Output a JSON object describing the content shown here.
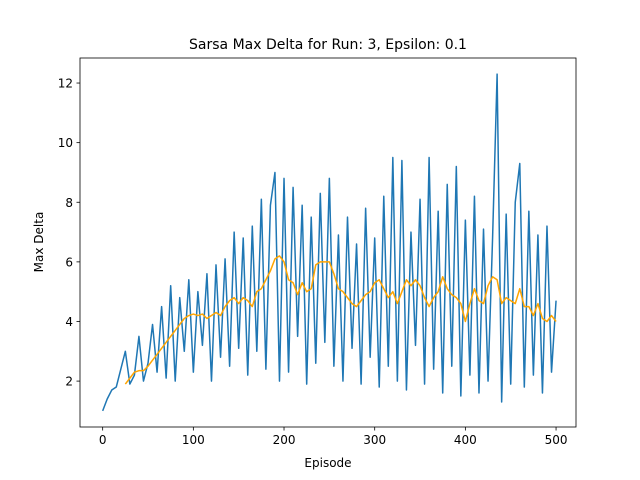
{
  "chart_data": {
    "type": "line",
    "title": "Sarsa Max Delta for Run: 3, Epsilon: 0.1",
    "x_label": "Episode",
    "y_label": "Max Delta",
    "x": [
      0,
      5,
      10,
      15,
      20,
      25,
      30,
      35,
      40,
      45,
      50,
      55,
      60,
      65,
      70,
      75,
      80,
      85,
      90,
      95,
      100,
      105,
      110,
      115,
      120,
      125,
      130,
      135,
      140,
      145,
      150,
      155,
      160,
      165,
      170,
      175,
      180,
      185,
      190,
      195,
      200,
      205,
      210,
      215,
      220,
      225,
      230,
      235,
      240,
      245,
      250,
      255,
      260,
      265,
      270,
      275,
      280,
      285,
      290,
      295,
      300,
      305,
      310,
      315,
      320,
      325,
      330,
      335,
      340,
      345,
      350,
      355,
      360,
      365,
      370,
      375,
      380,
      385,
      390,
      395,
      400,
      405,
      410,
      415,
      420,
      425,
      430,
      435,
      440,
      445,
      450,
      455,
      460,
      465,
      470,
      475,
      480,
      485,
      490,
      495,
      500
    ],
    "series": [
      {
        "color": "#1f77b4",
        "values": [
          1.0,
          1.4,
          1.7,
          1.8,
          2.4,
          3.0,
          1.9,
          2.2,
          3.5,
          2.0,
          2.6,
          3.9,
          2.3,
          4.5,
          2.1,
          5.2,
          2.0,
          4.8,
          3.0,
          5.4,
          2.3,
          5.0,
          3.2,
          5.6,
          2.0,
          5.9,
          2.8,
          6.1,
          2.5,
          7.0,
          3.1,
          6.8,
          2.2,
          7.2,
          3.0,
          8.1,
          2.4,
          7.9,
          9.0,
          2.0,
          8.8,
          2.3,
          8.5,
          3.5,
          7.9,
          1.9,
          7.5,
          2.6,
          8.3,
          3.3,
          8.8,
          2.5,
          6.9,
          2.0,
          7.5,
          3.1,
          6.6,
          1.9,
          7.8,
          2.8,
          6.8,
          1.8,
          8.2,
          2.5,
          9.5,
          2.0,
          9.4,
          1.7,
          7.0,
          3.2,
          8.1,
          1.9,
          9.5,
          2.4,
          7.7,
          1.6,
          8.6,
          2.5,
          9.2,
          1.5,
          7.4,
          2.2,
          8.2,
          1.6,
          7.1,
          2.0,
          6.8,
          12.3,
          1.3,
          7.6,
          1.9,
          8.0,
          9.3,
          1.8,
          7.7,
          2.2,
          6.9,
          1.6,
          7.2,
          2.3,
          4.7
        ]
      },
      {
        "color": "#ffa500",
        "values": [
          null,
          null,
          null,
          null,
          null,
          1.9,
          2.1,
          2.3,
          2.35,
          2.35,
          2.5,
          2.7,
          2.9,
          3.1,
          3.3,
          3.5,
          3.7,
          3.9,
          4.1,
          4.2,
          4.25,
          4.2,
          4.25,
          4.1,
          4.2,
          4.3,
          4.2,
          4.5,
          4.7,
          4.8,
          4.6,
          4.8,
          4.7,
          4.5,
          5.0,
          5.1,
          5.4,
          5.7,
          6.1,
          6.2,
          6.0,
          5.4,
          5.3,
          4.9,
          5.3,
          5.0,
          5.1,
          5.9,
          6.0,
          6.0,
          6.0,
          5.6,
          5.1,
          5.0,
          4.8,
          4.6,
          4.5,
          4.7,
          4.9,
          5.0,
          5.3,
          5.4,
          5.1,
          4.8,
          5.0,
          4.6,
          5.0,
          5.4,
          5.2,
          5.4,
          5.2,
          4.8,
          4.5,
          4.8,
          5.0,
          5.5,
          5.1,
          4.9,
          4.8,
          4.6,
          4.0,
          4.6,
          5.1,
          4.7,
          4.6,
          5.2,
          5.5,
          5.4,
          4.6,
          4.8,
          4.7,
          4.6,
          5.1,
          4.5,
          4.5,
          4.2,
          4.6,
          4.1,
          4.0,
          4.2,
          4.0
        ]
      }
    ],
    "xlim": [
      -25,
      522
    ],
    "ylim": [
      0.46,
      12.84
    ],
    "xticks": [
      0,
      100,
      200,
      300,
      400,
      500
    ],
    "yticks": [
      2,
      4,
      6,
      8,
      10,
      12
    ]
  }
}
